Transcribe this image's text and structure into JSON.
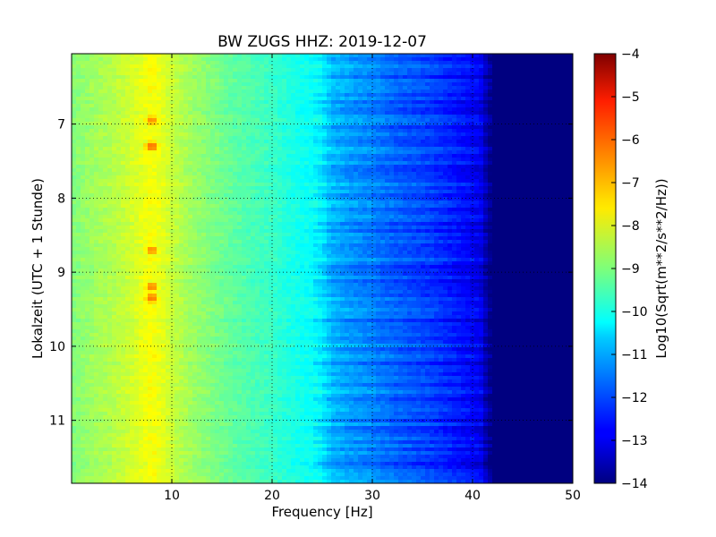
{
  "chart_data": {
    "type": "heatmap",
    "title": "BW ZUGS HHZ: 2019-12-07",
    "xlabel": "Frequency [Hz]",
    "ylabel": "Lokalzeit (UTC + 1 Stunde)",
    "xlim": [
      0,
      50
    ],
    "ylim": [
      11.85,
      6.05
    ],
    "y_inverted": true,
    "grid": true,
    "x_ticks": [
      10,
      20,
      30,
      40,
      50
    ],
    "x_tick_labels": [
      "10",
      "20",
      "30",
      "40",
      "50"
    ],
    "y_ticks": [
      7,
      8,
      9,
      10,
      11
    ],
    "y_tick_labels": [
      "7",
      "8",
      "9",
      "10",
      "11"
    ],
    "colormap": "jet",
    "colorbar": {
      "label": "Log10(Sqrt(m**2/s**2/Hz))",
      "range": [
        -14,
        -4
      ],
      "ticks": [
        -4,
        -5,
        -6,
        -7,
        -8,
        -9,
        -10,
        -11,
        -12,
        -13,
        -14
      ],
      "tick_labels": [
        "−4",
        "−5",
        "−6",
        "−7",
        "−8",
        "−9",
        "−10",
        "−11",
        "−12",
        "−13",
        "−14"
      ]
    },
    "spectrum_profile": {
      "frequency_hz": [
        0,
        2,
        4,
        6,
        7,
        8,
        9,
        10,
        12,
        14,
        16,
        18,
        20,
        22,
        24,
        25,
        26,
        28,
        30,
        32,
        34,
        36,
        38,
        40,
        41,
        41.5,
        42,
        50
      ],
      "log10_amplitude": [
        -9.0,
        -8.7,
        -8.5,
        -8.2,
        -8.0,
        -7.8,
        -8.0,
        -8.3,
        -8.7,
        -9.0,
        -9.3,
        -9.5,
        -9.7,
        -10.0,
        -10.2,
        -10.5,
        -11.0,
        -11.3,
        -11.5,
        -11.8,
        -12.0,
        -12.2,
        -12.5,
        -12.8,
        -13.0,
        -13.8,
        -14.0,
        -14.0
      ]
    },
    "peak_frequency_hz": 8,
    "peak_events": [
      {
        "time_h": 6.95,
        "log10_amplitude": -6.6
      },
      {
        "time_h": 7.3,
        "log10_amplitude": -6.3
      },
      {
        "time_h": 8.7,
        "log10_amplitude": -6.6
      },
      {
        "time_h": 9.2,
        "log10_amplitude": -6.5
      },
      {
        "time_h": 9.35,
        "log10_amplitude": -6.4
      }
    ]
  }
}
